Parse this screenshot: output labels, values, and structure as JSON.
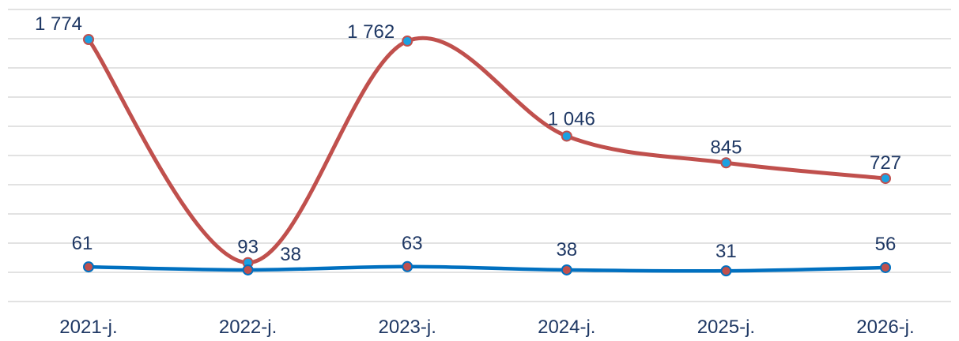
{
  "chart_data": {
    "type": "line",
    "title": "",
    "xlabel": "",
    "ylabel": "",
    "categories": [
      "2021-j.",
      "2022-j.",
      "2023-j.",
      "2024-j.",
      "2025-j.",
      "2026-j."
    ],
    "series": [
      {
        "values": [
          1774,
          93,
          1762,
          1046,
          845,
          727
        ],
        "labels": [
          "1 774",
          "93",
          "1 762",
          "1 046",
          "845",
          "727"
        ],
        "line_color": "#c0504d",
        "marker_fill": "#1ba1e2",
        "marker_stroke": "#c0504d",
        "smooth": true
      },
      {
        "values": [
          61,
          38,
          63,
          38,
          31,
          56
        ],
        "labels": [
          "61",
          "38",
          "63",
          "38",
          "31",
          "56"
        ],
        "line_color": "#0070c0",
        "marker_fill": "#c0504d",
        "marker_stroke": "#0070c0",
        "smooth": true
      }
    ],
    "ylim": [
      -200,
      2000
    ],
    "y_gridlines": 11,
    "grid": true,
    "legend": "none"
  }
}
